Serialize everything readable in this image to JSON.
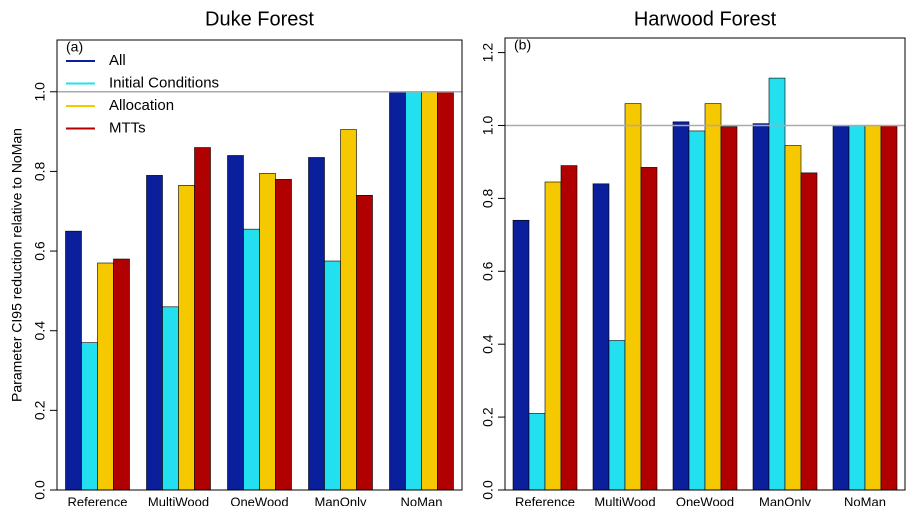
{
  "chart_data": [
    {
      "type": "bar",
      "title": "Duke Forest",
      "panel_label": "(a)",
      "ylabel": "Parameter CI95 reduction relative to NoMan",
      "categories": [
        "Reference",
        "MultiWood",
        "OneWood",
        "ManOnly",
        "NoMan"
      ],
      "series": [
        {
          "name": "All",
          "color": "#0a1f9c",
          "values": [
            0.65,
            0.79,
            0.84,
            0.835,
            1.0
          ]
        },
        {
          "name": "Initial Conditions",
          "color": "#22e0f0",
          "values": [
            0.37,
            0.46,
            0.655,
            0.575,
            1.0
          ]
        },
        {
          "name": "Allocation",
          "color": "#f5c800",
          "values": [
            0.57,
            0.765,
            0.795,
            0.905,
            1.0
          ]
        },
        {
          "name": "MTTs",
          "color": "#b00000",
          "values": [
            0.58,
            0.86,
            0.78,
            0.74,
            1.0
          ]
        }
      ],
      "ylim": [
        0,
        1.13
      ],
      "yticks": [
        {
          "value": 0,
          "label": "0.0"
        },
        {
          "value": 0.2,
          "label": "0.2"
        },
        {
          "value": 0.4,
          "label": "0.4"
        },
        {
          "value": 0.6,
          "label": "0.6"
        },
        {
          "value": 0.8,
          "label": "0.8"
        },
        {
          "value": 1.0,
          "label": "1.0"
        }
      ],
      "reference_line": 1,
      "legend": "top-left"
    },
    {
      "type": "bar",
      "title": "Harwood Forest",
      "panel_label": "(b)",
      "categories": [
        "Reference",
        "MultiWood",
        "OneWood",
        "ManOnly",
        "NoMan"
      ],
      "series": [
        {
          "color": "#0a1f9c",
          "values": [
            0.74,
            0.84,
            1.01,
            1.005,
            1.0
          ]
        },
        {
          "color": "#22e0f0",
          "values": [
            0.21,
            0.41,
            0.985,
            1.13,
            1.0
          ]
        },
        {
          "color": "#f5c800",
          "values": [
            0.845,
            1.06,
            1.06,
            0.945,
            1.0
          ]
        },
        {
          "color": "#b00000",
          "values": [
            0.89,
            0.885,
            0.997,
            0.87,
            1.0
          ]
        }
      ],
      "ylim": [
        0,
        1.24
      ],
      "yticks": [
        {
          "value": 0,
          "label": "0.0"
        },
        {
          "value": 0.2,
          "label": "0.2"
        },
        {
          "value": 0.4,
          "label": "0.4"
        },
        {
          "value": 0.6,
          "label": "0.6"
        },
        {
          "value": 0.8,
          "label": "0.8"
        },
        {
          "value": 1.0,
          "label": "1.0"
        },
        {
          "value": 1.2,
          "label": "1.2"
        }
      ],
      "reference_line": 1
    }
  ]
}
